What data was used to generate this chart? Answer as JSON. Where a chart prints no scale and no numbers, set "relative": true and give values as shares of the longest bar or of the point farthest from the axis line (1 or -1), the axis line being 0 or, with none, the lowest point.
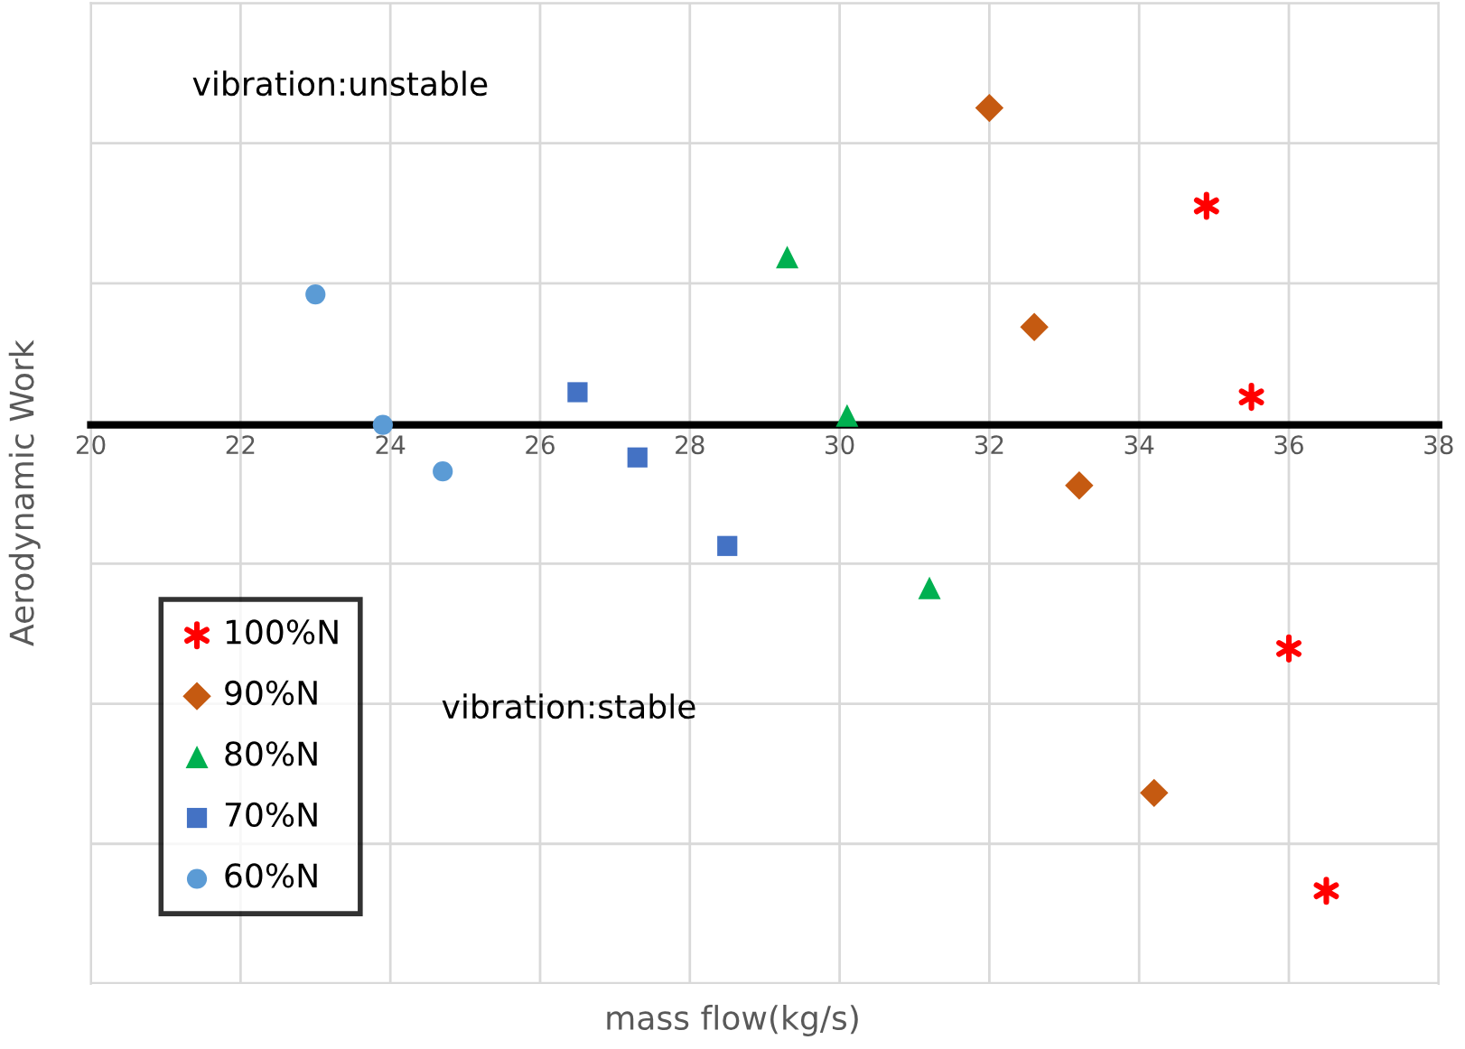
{
  "chart_data": {
    "type": "scatter",
    "relative": true,
    "xlabel": "mass flow(kg/s)",
    "ylabel": "Aerodynamic Work",
    "xlim": [
      20,
      38
    ],
    "xticks": [
      20,
      22,
      24,
      26,
      28,
      30,
      32,
      34,
      36,
      38
    ],
    "grid": true,
    "legend": "bottom left",
    "annotations": [
      "vibration:unstable",
      "vibration:stable"
    ],
    "series": [
      {
        "name": "100%N",
        "color": "#ff0000",
        "marker": "cross",
        "x": [
          34.9,
          35.5,
          36.0,
          36.5
        ],
        "values": [
          0.47,
          0.06,
          -0.48,
          -1
        ]
      },
      {
        "name": "90%N",
        "color": "#c55a11",
        "marker": "diamond",
        "x": [
          32.0,
          32.6,
          33.2,
          34.2
        ],
        "values": [
          0.68,
          0.21,
          -0.13,
          -0.79
        ]
      },
      {
        "name": "80%N",
        "color": "#00b050",
        "marker": "triangle",
        "x": [
          29.3,
          30.1,
          31.2
        ],
        "values": [
          0.36,
          0.02,
          -0.35
        ]
      },
      {
        "name": "70%N",
        "color": "#4472c4",
        "marker": "square",
        "x": [
          26.5,
          27.3,
          28.5
        ],
        "values": [
          0.07,
          -0.07,
          -0.26
        ]
      },
      {
        "name": "60%N",
        "color": "#5b9bd5",
        "marker": "circle",
        "x": [
          23.0,
          23.9,
          24.7
        ],
        "values": [
          0.28,
          0.0,
          -0.1
        ]
      }
    ]
  }
}
